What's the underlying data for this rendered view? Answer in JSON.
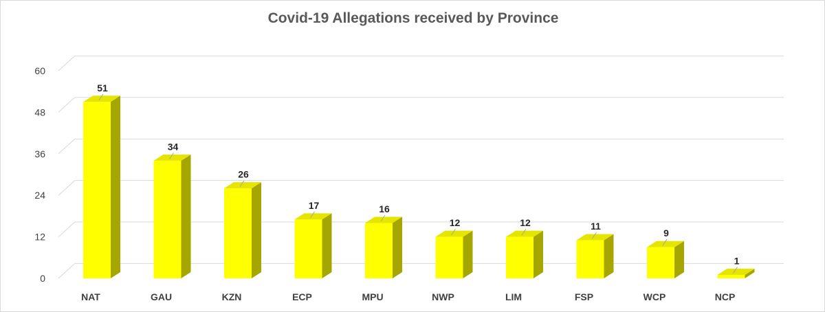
{
  "chart_data": {
    "type": "bar",
    "title": "Covid-19 Allegations received by Province",
    "xlabel": "",
    "ylabel": "",
    "categories": [
      "NAT",
      "GAU",
      "KZN",
      "ECP",
      "MPU",
      "NWP",
      "LIM",
      "FSP",
      "WCP",
      "NCP"
    ],
    "values": [
      51,
      34,
      26,
      17,
      16,
      12,
      12,
      11,
      9,
      1
    ],
    "ylim": [
      0,
      60
    ],
    "yticks": [
      0,
      12,
      24,
      36,
      48,
      60
    ],
    "grid": true,
    "legend": "none",
    "style": "3d-column",
    "colors": {
      "bar_front": "#FFFF00",
      "bar_top": "#E5E500",
      "bar_side": "#A6A600",
      "grid": "#D9D9D9",
      "title": "#595959"
    }
  }
}
